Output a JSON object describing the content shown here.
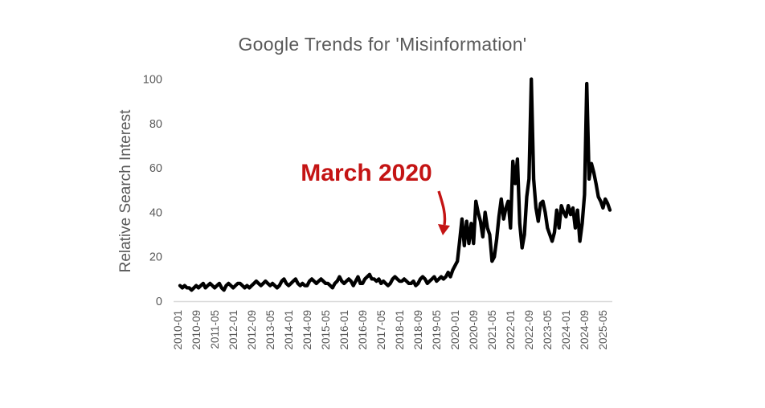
{
  "chart_data": {
    "type": "line",
    "title": "Google Trends for 'Misinformation'",
    "ylabel": "Relative Search Interest",
    "xlabel": "",
    "ylim": [
      0,
      100
    ],
    "y_ticks": [
      0,
      20,
      40,
      60,
      80,
      100
    ],
    "grid": false,
    "legend": false,
    "x_start": "2010-01",
    "x_end": "2025-07",
    "x_frequency": "monthly",
    "x_tick_interval_months": 8,
    "x_tick_labels": [
      "2010-01",
      "2010-09",
      "2011-05",
      "2012-01",
      "2012-09",
      "2013-05",
      "2014-01",
      "2014-09",
      "2015-05",
      "2016-01",
      "2016-09",
      "2017-05",
      "2018-01",
      "2018-09",
      "2019-05",
      "2020-01",
      "2020-09",
      "2021-05",
      "2022-01",
      "2022-09",
      "2023-05",
      "2024-01",
      "2024-09",
      "2025-05"
    ],
    "annotation": {
      "text": "March 2020",
      "color": "#C41414",
      "points_to": "2020-03"
    },
    "colors": {
      "line": "#000000",
      "axis_line": "#D9D9D9",
      "text": "#595959"
    },
    "series": [
      {
        "name": "misinformation",
        "start": "2010-01",
        "values": [
          7,
          6,
          7,
          6,
          6,
          5,
          6,
          7,
          6,
          7,
          8,
          6,
          7,
          8,
          7,
          6,
          7,
          8,
          6,
          5,
          7,
          8,
          7,
          6,
          7,
          8,
          8,
          7,
          6,
          7,
          6,
          7,
          8,
          9,
          8,
          7,
          8,
          9,
          8,
          7,
          8,
          7,
          6,
          7,
          9,
          10,
          8,
          7,
          8,
          9,
          10,
          8,
          7,
          8,
          7,
          7,
          9,
          10,
          9,
          8,
          9,
          10,
          9,
          8,
          8,
          7,
          6,
          8,
          9,
          11,
          9,
          8,
          9,
          10,
          9,
          7,
          9,
          11,
          8,
          8,
          10,
          11,
          12,
          10,
          10,
          9,
          10,
          8,
          9,
          8,
          7,
          8,
          10,
          11,
          10,
          9,
          9,
          10,
          9,
          8,
          8,
          9,
          7,
          8,
          10,
          11,
          10,
          8,
          9,
          10,
          11,
          9,
          10,
          11,
          10,
          11,
          13,
          11,
          14,
          16,
          18,
          27,
          37,
          25,
          36,
          26,
          35,
          26,
          45,
          40,
          36,
          29,
          40,
          33,
          30,
          18,
          20,
          28,
          38,
          46,
          37,
          42,
          45,
          33,
          63,
          53,
          64,
          35,
          24,
          30,
          47,
          55,
          100,
          55,
          42,
          36,
          44,
          45,
          40,
          33,
          30,
          27,
          31,
          41,
          33,
          43,
          40,
          38,
          43,
          39,
          42,
          33,
          41,
          27,
          35,
          48,
          98,
          55,
          62,
          58,
          53,
          47,
          45,
          42,
          46,
          44,
          41
        ]
      }
    ]
  }
}
